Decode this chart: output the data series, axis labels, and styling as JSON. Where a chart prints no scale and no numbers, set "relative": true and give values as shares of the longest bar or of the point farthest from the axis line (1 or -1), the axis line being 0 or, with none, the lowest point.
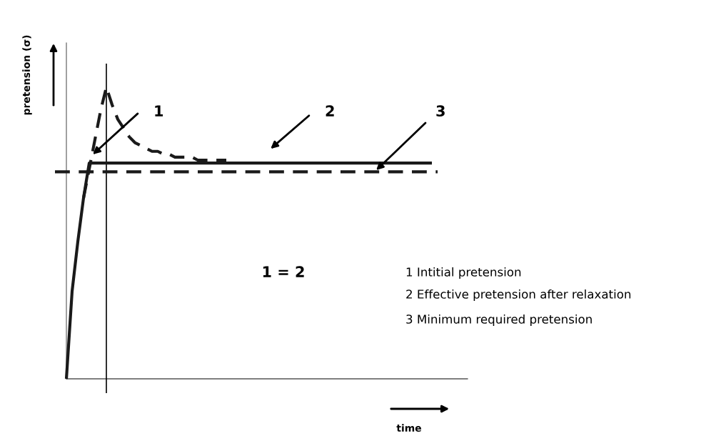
{
  "chart_data": {
    "type": "line",
    "relative": true,
    "xlabel": "time",
    "ylabel": "pretension (σ)",
    "categories": [
      null,
      null,
      null,
      null,
      null,
      null,
      null,
      null,
      null,
      null,
      null,
      null,
      null,
      null,
      null,
      null,
      null,
      null,
      null,
      null,
      null,
      null,
      null,
      null,
      null,
      null,
      null,
      null,
      null,
      null,
      null,
      null,
      null,
      null,
      null,
      null,
      null,
      null,
      null,
      null,
      null,
      null,
      null,
      null,
      null,
      null,
      null,
      null,
      null,
      null,
      null,
      null,
      null,
      null,
      null,
      null,
      null,
      null,
      null,
      null,
      null,
      null,
      null,
      null,
      null,
      null,
      null,
      null
    ],
    "series": [
      {
        "color": "#1a1a1a",
        "line_style": "solid",
        "values": [
          null,
          null,
          0,
          0.3,
          0.47,
          0.62,
          0.74,
          0.74,
          0.74,
          0.74,
          0.74,
          0.74,
          0.74,
          0.74,
          0.74,
          0.74,
          0.74,
          0.74,
          0.74,
          0.74,
          0.74,
          0.74,
          0.74,
          0.74,
          0.74,
          0.74,
          0.74,
          0.74,
          0.74,
          0.74,
          0.74,
          0.74,
          0.74,
          0.74,
          0.74,
          0.74,
          0.74,
          0.74,
          0.74,
          0.74,
          0.74,
          0.74,
          0.74,
          0.74,
          0.74,
          0.74,
          0.74,
          0.74,
          0.74,
          0.74,
          0.74,
          0.74,
          0.74,
          0.74,
          0.74,
          0.74,
          0.74,
          0.74,
          0.74,
          0.74,
          0.74,
          0.74,
          0.74,
          0.74,
          0.74,
          0.74,
          0.74,
          null
        ]
      },
      {
        "color": "#1a1a1a",
        "line_style": "dashed",
        "values": [
          null,
          null,
          null,
          null,
          null,
          0.62,
          0.72,
          0.82,
          0.92,
          1.0,
          0.94,
          0.89,
          0.86,
          0.83,
          0.81,
          0.8,
          0.79,
          0.78,
          0.78,
          0.77,
          0.77,
          0.76,
          0.76,
          0.76,
          0.76,
          0.75,
          0.75,
          0.75,
          0.75,
          0.75,
          0.75,
          null,
          null,
          null,
          null,
          null,
          null,
          null,
          null,
          null,
          null,
          null,
          null,
          null,
          null,
          null,
          null,
          null,
          null,
          null,
          null,
          null,
          null,
          null,
          null,
          null,
          null,
          null,
          null,
          null,
          null,
          null,
          null,
          null,
          null,
          null,
          null,
          null
        ]
      },
      {
        "color": "#1a1a1a",
        "line_style": "dashed",
        "values": [
          0.71,
          0.71,
          0.71,
          0.71,
          0.71,
          0.71,
          0.71,
          0.71,
          0.71,
          0.71,
          0.71,
          0.71,
          0.71,
          0.71,
          0.71,
          0.71,
          0.71,
          0.71,
          0.71,
          0.71,
          0.71,
          0.71,
          0.71,
          0.71,
          0.71,
          0.71,
          0.71,
          0.71,
          0.71,
          0.71,
          0.71,
          0.71,
          0.71,
          0.71,
          0.71,
          0.71,
          0.71,
          0.71,
          0.71,
          0.71,
          0.71,
          0.71,
          0.71,
          0.71,
          0.71,
          0.71,
          0.71,
          0.71,
          0.71,
          0.71,
          0.71,
          0.71,
          0.71,
          0.71,
          0.71,
          0.71,
          0.71,
          0.71,
          0.71,
          0.71,
          0.71,
          0.71,
          0.71,
          0.71,
          0.71,
          0.71,
          0.71,
          0.71
        ]
      }
    ],
    "annotations": [
      "1",
      "2",
      "3",
      "1 = 2",
      "1 Intitial pretension",
      "2 Effective pretension after relaxation",
      "3 Minimum required pretension"
    ]
  }
}
